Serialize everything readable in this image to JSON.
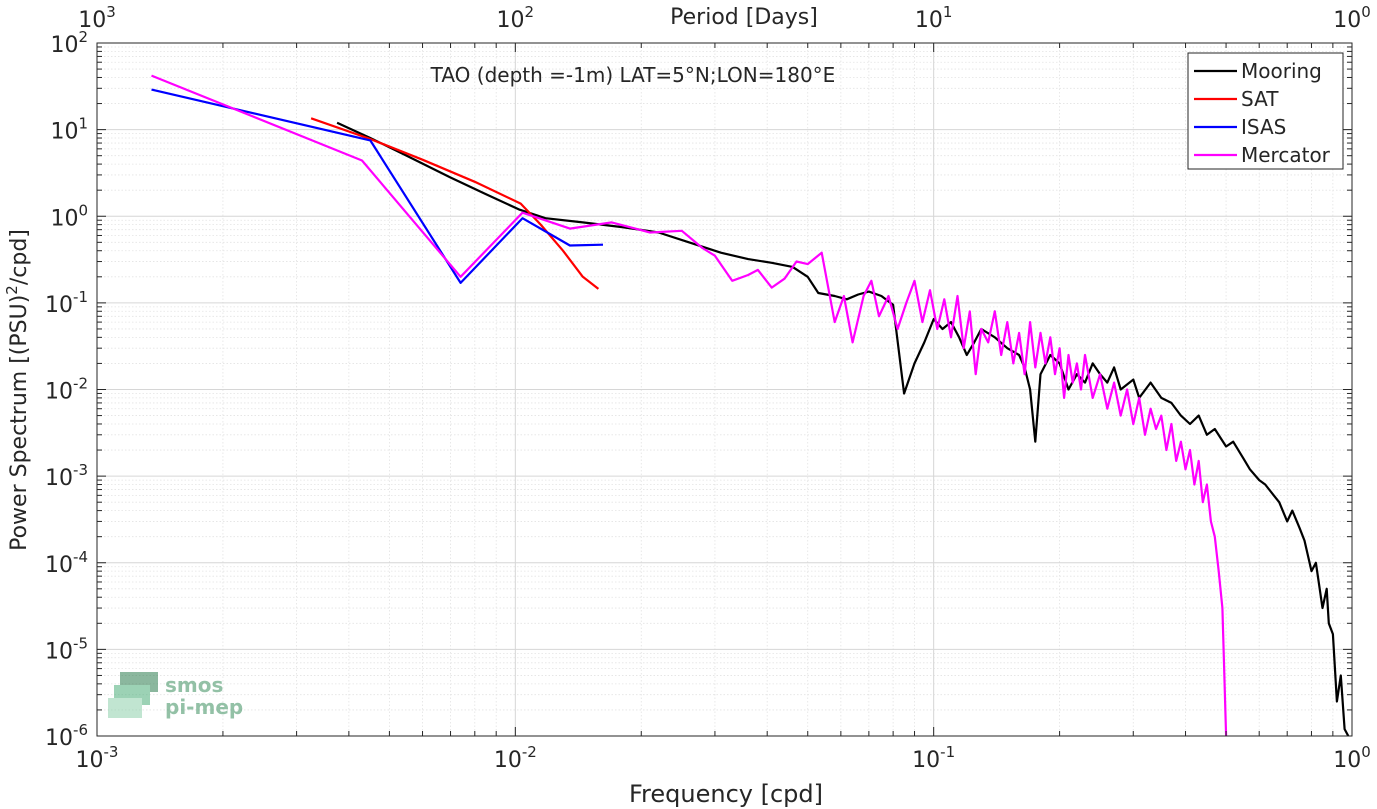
{
  "chart_data": {
    "type": "line",
    "title": "TAO (depth =-1m) LAT=5°N;LON=180°E",
    "xlabel": "Frequency [cpd]",
    "ylabel": "Power Spectrum [(PSU)²/cpd]",
    "ylabel_main": "Power Spectrum [(PSU)",
    "ylabel_sup": "2",
    "ylabel_tail": "/cpd]",
    "top_xlabel": "Period [Days]",
    "xscale": "log",
    "yscale": "log",
    "xlim": [
      0.001,
      1
    ],
    "ylim": [
      1e-06,
      100
    ],
    "grid": true,
    "minor_grid": true,
    "legend_position": "top-right",
    "x_ticks": [
      {
        "value": 0.001,
        "base": "10",
        "exp": "-3"
      },
      {
        "value": 0.01,
        "base": "10",
        "exp": "-2"
      },
      {
        "value": 0.1,
        "base": "10",
        "exp": "-1"
      },
      {
        "value": 1,
        "base": "10",
        "exp": "0"
      }
    ],
    "top_ticks": [
      {
        "freq": 0.001,
        "base": "10",
        "exp": "3"
      },
      {
        "freq": 0.01,
        "base": "10",
        "exp": "2"
      },
      {
        "freq": 0.1,
        "base": "10",
        "exp": "1"
      },
      {
        "freq": 1,
        "base": "10",
        "exp": "0"
      }
    ],
    "y_ticks": [
      {
        "value": 100,
        "base": "10",
        "exp": "2"
      },
      {
        "value": 10,
        "base": "10",
        "exp": "1"
      },
      {
        "value": 1,
        "base": "10",
        "exp": "0"
      },
      {
        "value": 0.1,
        "base": "10",
        "exp": "-1"
      },
      {
        "value": 0.01,
        "base": "10",
        "exp": "-2"
      },
      {
        "value": 0.001,
        "base": "10",
        "exp": "-3"
      },
      {
        "value": 0.0001,
        "base": "10",
        "exp": "-4"
      },
      {
        "value": 1e-05,
        "base": "10",
        "exp": "-5"
      },
      {
        "value": 1e-06,
        "base": "10",
        "exp": "-6"
      }
    ],
    "series": [
      {
        "name": "Mooring",
        "color": "#000000",
        "points": [
          [
            0.00375,
            12
          ],
          [
            0.0045,
            8
          ],
          [
            0.0055,
            5
          ],
          [
            0.007,
            2.8
          ],
          [
            0.0085,
            1.8
          ],
          [
            0.0102,
            1.2
          ],
          [
            0.0118,
            0.95
          ],
          [
            0.0145,
            0.85
          ],
          [
            0.018,
            0.75
          ],
          [
            0.022,
            0.65
          ],
          [
            0.026,
            0.5
          ],
          [
            0.031,
            0.38
          ],
          [
            0.036,
            0.32
          ],
          [
            0.041,
            0.29
          ],
          [
            0.046,
            0.26
          ],
          [
            0.05,
            0.2
          ],
          [
            0.053,
            0.13
          ],
          [
            0.058,
            0.12
          ],
          [
            0.062,
            0.11
          ],
          [
            0.066,
            0.125
          ],
          [
            0.07,
            0.135
          ],
          [
            0.075,
            0.12
          ],
          [
            0.08,
            0.095
          ],
          [
            0.085,
            0.009
          ],
          [
            0.09,
            0.02
          ],
          [
            0.095,
            0.035
          ],
          [
            0.1,
            0.065
          ],
          [
            0.105,
            0.05
          ],
          [
            0.11,
            0.06
          ],
          [
            0.115,
            0.04
          ],
          [
            0.12,
            0.025
          ],
          [
            0.125,
            0.035
          ],
          [
            0.13,
            0.05
          ],
          [
            0.14,
            0.04
          ],
          [
            0.15,
            0.03
          ],
          [
            0.16,
            0.025
          ],
          [
            0.165,
            0.018
          ],
          [
            0.17,
            0.01
          ],
          [
            0.175,
            0.0025
          ],
          [
            0.18,
            0.015
          ],
          [
            0.19,
            0.025
          ],
          [
            0.2,
            0.02
          ],
          [
            0.21,
            0.01
          ],
          [
            0.22,
            0.015
          ],
          [
            0.23,
            0.012
          ],
          [
            0.24,
            0.02
          ],
          [
            0.25,
            0.015
          ],
          [
            0.26,
            0.012
          ],
          [
            0.27,
            0.018
          ],
          [
            0.28,
            0.01
          ],
          [
            0.3,
            0.013
          ],
          [
            0.31,
            0.008
          ],
          [
            0.33,
            0.012
          ],
          [
            0.35,
            0.008
          ],
          [
            0.37,
            0.007
          ],
          [
            0.39,
            0.005
          ],
          [
            0.41,
            0.004
          ],
          [
            0.43,
            0.005
          ],
          [
            0.45,
            0.003
          ],
          [
            0.47,
            0.0035
          ],
          [
            0.5,
            0.0022
          ],
          [
            0.52,
            0.0025
          ],
          [
            0.55,
            0.0016
          ],
          [
            0.57,
            0.0012
          ],
          [
            0.6,
            0.0009
          ],
          [
            0.62,
            0.0008
          ],
          [
            0.65,
            0.0006
          ],
          [
            0.67,
            0.0005
          ],
          [
            0.7,
            0.0003
          ],
          [
            0.72,
            0.0004
          ],
          [
            0.75,
            0.00025
          ],
          [
            0.77,
            0.00018
          ],
          [
            0.8,
            8e-05
          ],
          [
            0.82,
            0.0001
          ],
          [
            0.85,
            3e-05
          ],
          [
            0.87,
            5e-05
          ],
          [
            0.88,
            2e-05
          ],
          [
            0.9,
            1.5e-05
          ],
          [
            0.92,
            2.5e-06
          ],
          [
            0.94,
            5e-06
          ],
          [
            0.96,
            1.2e-06
          ],
          [
            0.98,
            1e-06
          ]
        ]
      },
      {
        "name": "SAT",
        "color": "#ff0000",
        "points": [
          [
            0.00325,
            13.5
          ],
          [
            0.0045,
            7.8
          ],
          [
            0.006,
            4.5
          ],
          [
            0.008,
            2.5
          ],
          [
            0.0103,
            1.4
          ],
          [
            0.0115,
            0.8
          ],
          [
            0.013,
            0.4
          ],
          [
            0.0145,
            0.2
          ],
          [
            0.0158,
            0.145
          ]
        ]
      },
      {
        "name": "ISAS",
        "color": "#0000ff",
        "points": [
          [
            0.00135,
            29
          ],
          [
            0.0045,
            7.5
          ],
          [
            0.0074,
            0.17
          ],
          [
            0.0104,
            0.95
          ],
          [
            0.0135,
            0.46
          ],
          [
            0.0162,
            0.47
          ]
        ]
      },
      {
        "name": "Mercator",
        "color": "#ff00ff",
        "points": [
          [
            0.00135,
            42
          ],
          [
            0.0043,
            4.4
          ],
          [
            0.0074,
            0.2
          ],
          [
            0.0104,
            1.1
          ],
          [
            0.0135,
            0.72
          ],
          [
            0.017,
            0.85
          ],
          [
            0.021,
            0.65
          ],
          [
            0.025,
            0.68
          ],
          [
            0.028,
            0.43
          ],
          [
            0.03,
            0.35
          ],
          [
            0.033,
            0.18
          ],
          [
            0.036,
            0.21
          ],
          [
            0.038,
            0.24
          ],
          [
            0.041,
            0.15
          ],
          [
            0.044,
            0.19
          ],
          [
            0.047,
            0.3
          ],
          [
            0.05,
            0.28
          ],
          [
            0.054,
            0.38
          ],
          [
            0.058,
            0.06
          ],
          [
            0.061,
            0.12
          ],
          [
            0.064,
            0.035
          ],
          [
            0.068,
            0.12
          ],
          [
            0.071,
            0.18
          ],
          [
            0.074,
            0.07
          ],
          [
            0.078,
            0.12
          ],
          [
            0.082,
            0.05
          ],
          [
            0.086,
            0.1
          ],
          [
            0.09,
            0.18
          ],
          [
            0.094,
            0.06
          ],
          [
            0.098,
            0.14
          ],
          [
            0.102,
            0.05
          ],
          [
            0.106,
            0.11
          ],
          [
            0.11,
            0.04
          ],
          [
            0.114,
            0.12
          ],
          [
            0.118,
            0.03
          ],
          [
            0.122,
            0.08
          ],
          [
            0.126,
            0.015
          ],
          [
            0.13,
            0.05
          ],
          [
            0.135,
            0.035
          ],
          [
            0.14,
            0.08
          ],
          [
            0.145,
            0.025
          ],
          [
            0.15,
            0.06
          ],
          [
            0.155,
            0.02
          ],
          [
            0.16,
            0.045
          ],
          [
            0.165,
            0.015
          ],
          [
            0.17,
            0.06
          ],
          [
            0.175,
            0.018
          ],
          [
            0.18,
            0.045
          ],
          [
            0.185,
            0.02
          ],
          [
            0.19,
            0.04
          ],
          [
            0.195,
            0.015
          ],
          [
            0.2,
            0.03
          ],
          [
            0.205,
            0.008
          ],
          [
            0.21,
            0.025
          ],
          [
            0.215,
            0.012
          ],
          [
            0.22,
            0.02
          ],
          [
            0.225,
            0.01
          ],
          [
            0.23,
            0.025
          ],
          [
            0.24,
            0.008
          ],
          [
            0.25,
            0.015
          ],
          [
            0.26,
            0.006
          ],
          [
            0.27,
            0.012
          ],
          [
            0.28,
            0.005
          ],
          [
            0.29,
            0.01
          ],
          [
            0.3,
            0.004
          ],
          [
            0.31,
            0.008
          ],
          [
            0.32,
            0.003
          ],
          [
            0.33,
            0.006
          ],
          [
            0.34,
            0.0035
          ],
          [
            0.35,
            0.005
          ],
          [
            0.36,
            0.002
          ],
          [
            0.37,
            0.004
          ],
          [
            0.38,
            0.0015
          ],
          [
            0.39,
            0.0025
          ],
          [
            0.4,
            0.0012
          ],
          [
            0.41,
            0.002
          ],
          [
            0.42,
            0.0008
          ],
          [
            0.43,
            0.0015
          ],
          [
            0.44,
            0.0005
          ],
          [
            0.45,
            0.0008
          ],
          [
            0.46,
            0.0003
          ],
          [
            0.47,
            0.0002
          ],
          [
            0.48,
            8e-05
          ],
          [
            0.49,
            3e-05
          ],
          [
            0.5,
            1e-06
          ]
        ]
      }
    ]
  },
  "watermark": {
    "line1": "smos",
    "line2": "pi-mep",
    "color": "#3b8f5f"
  }
}
